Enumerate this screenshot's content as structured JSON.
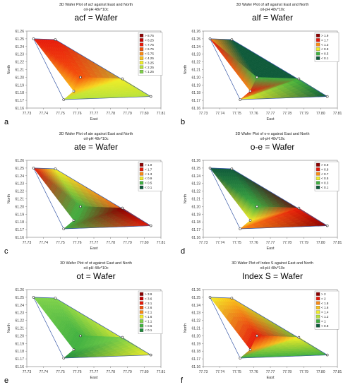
{
  "figure": {
    "panels": [
      {
        "letter": "a",
        "title_top": "3D Wafer Plot of acf against East and North",
        "subtitle": "oil-pH 48v*10c",
        "title_main": "acf = Wafer",
        "legend": [
          "> 8.75",
          "< 8.25",
          "< 7.75",
          "< 6.75",
          "< 5.75",
          "< 4.25",
          "< 3.25",
          "< 2.25",
          "< 1.25"
        ],
        "legend_colors": [
          "#8c0000",
          "#c40000",
          "#e61a0a",
          "#f5500a",
          "#fa8a14",
          "#fcc21a",
          "#f2ee28",
          "#b8e23a",
          "#7fd24a"
        ],
        "regions": [
          {
            "tri": [
              0,
              1,
              2
            ],
            "c": [
              2,
              2,
              3
            ]
          },
          {
            "tri": [
              1,
              6,
              2
            ],
            "c": [
              2,
              7,
              3
            ]
          },
          {
            "tri": [
              0,
              2,
              3
            ],
            "c": [
              2,
              3,
              5
            ]
          },
          {
            "tri": [
              2,
              6,
              4
            ],
            "c": [
              3,
              7,
              6
            ]
          },
          {
            "tri": [
              2,
              4,
              3
            ],
            "c": [
              3,
              6,
              5
            ]
          },
          {
            "tri": [
              3,
              4,
              5
            ],
            "c": [
              5,
              6,
              7
            ]
          },
          {
            "tri": [
              4,
              6,
              5
            ],
            "c": [
              6,
              7,
              7
            ]
          }
        ]
      },
      {
        "letter": "b",
        "title_top": "3D Wafer Plot of alf against East and North",
        "subtitle": "oil-pH 48v*10c",
        "title_main": "alf = Wafer",
        "legend": [
          "> 1.9",
          "< 1.7",
          "< 1.3",
          "< 0.9",
          "< 0.5",
          "< 0.1"
        ],
        "legend_colors": [
          "#8c0000",
          "#e61a0a",
          "#fa8a14",
          "#f2ee28",
          "#40b040",
          "#0f5a3a"
        ],
        "regions": [
          {
            "tri": [
              0,
              1,
              2
            ],
            "c": [
              2,
              5,
              5
            ]
          },
          {
            "tri": [
              1,
              6,
              2
            ],
            "c": [
              5,
              5,
              5
            ]
          },
          {
            "tri": [
              0,
              2,
              3
            ],
            "c": [
              1,
              4,
              2
            ]
          },
          {
            "tri": [
              2,
              6,
              4
            ],
            "c": [
              5,
              5,
              4
            ]
          },
          {
            "tri": [
              2,
              4,
              3
            ],
            "c": [
              4,
              4,
              1
            ]
          },
          {
            "tri": [
              3,
              4,
              5
            ],
            "c": [
              1,
              4,
              2
            ]
          },
          {
            "tri": [
              4,
              6,
              5
            ],
            "c": [
              4,
              5,
              3
            ]
          }
        ]
      },
      {
        "letter": "c",
        "title_top": "3D Wafer Plot of ate against East and North",
        "subtitle": "oil-pH 48v*10c",
        "title_main": "ate = Wafer",
        "legend": [
          "> 1.9",
          "< 1.7",
          "< 1.3",
          "< 0.9",
          "< 0.5",
          "< 0.1"
        ],
        "legend_colors": [
          "#8c0000",
          "#e61a0a",
          "#fa8a14",
          "#f2ee28",
          "#40b040",
          "#0f5a3a"
        ],
        "regions": [
          {
            "tri": [
              0,
              1,
              2
            ],
            "c": [
              1,
              3,
              4
            ]
          },
          {
            "tri": [
              1,
              6,
              2
            ],
            "c": [
              3,
              1,
              4
            ]
          },
          {
            "tri": [
              0,
              2,
              3
            ],
            "c": [
              1,
              4,
              4
            ]
          },
          {
            "tri": [
              2,
              6,
              4
            ],
            "c": [
              4,
              1,
              0
            ]
          },
          {
            "tri": [
              2,
              4,
              3
            ],
            "c": [
              4,
              0,
              4
            ]
          },
          {
            "tri": [
              3,
              4,
              5
            ],
            "c": [
              4,
              0,
              4
            ]
          },
          {
            "tri": [
              4,
              6,
              5
            ],
            "c": [
              0,
              1,
              4
            ]
          }
        ]
      },
      {
        "letter": "d",
        "title_top": "3D Wafer Plot of o-e against East and North",
        "subtitle": "oil-pH 48v*10c",
        "title_main": "o-e = Wafer",
        "legend": [
          "> 0.9",
          "< 0.9",
          "< 0.7",
          "< 0.5",
          "< 0.3",
          "< 0.1"
        ],
        "legend_colors": [
          "#8c0000",
          "#e61a0a",
          "#fa8a14",
          "#f2ee28",
          "#40b040",
          "#0f5a3a"
        ],
        "regions": [
          {
            "tri": [
              0,
              1,
              2
            ],
            "c": [
              5,
              5,
              4
            ]
          },
          {
            "tri": [
              1,
              6,
              2
            ],
            "c": [
              5,
              0,
              4
            ]
          },
          {
            "tri": [
              0,
              2,
              3
            ],
            "c": [
              5,
              4,
              3
            ]
          },
          {
            "tri": [
              2,
              6,
              4
            ],
            "c": [
              4,
              0,
              1
            ]
          },
          {
            "tri": [
              2,
              4,
              3
            ],
            "c": [
              4,
              1,
              3
            ]
          },
          {
            "tri": [
              3,
              4,
              5
            ],
            "c": [
              3,
              1,
              2
            ]
          },
          {
            "tri": [
              4,
              6,
              5
            ],
            "c": [
              1,
              0,
              2
            ]
          }
        ]
      },
      {
        "letter": "e",
        "title_top": "3D Wafer Plot of ot against East and North",
        "subtitle": "oil-pH 48v*10c",
        "title_main": "ot = Wafer",
        "legend": [
          "> 3.9",
          "< 3.6",
          "< 3.1",
          "< 2.6",
          "< 2.1",
          "< 1.6",
          "< 1.1",
          "< 0.6",
          "< 0.1"
        ],
        "legend_colors": [
          "#8c0000",
          "#c40000",
          "#e61a0a",
          "#f5500a",
          "#fa8a14",
          "#f2ee28",
          "#7fd24a",
          "#40b040",
          "#1f8a3a"
        ],
        "regions": [
          {
            "tri": [
              0,
              1,
              2
            ],
            "c": [
              6,
              6,
              7
            ]
          },
          {
            "tri": [
              1,
              6,
              2
            ],
            "c": [
              6,
              5,
              7
            ]
          },
          {
            "tri": [
              0,
              2,
              3
            ],
            "c": [
              6,
              7,
              7
            ]
          },
          {
            "tri": [
              2,
              6,
              4
            ],
            "c": [
              7,
              5,
              6
            ]
          },
          {
            "tri": [
              2,
              4,
              3
            ],
            "c": [
              7,
              6,
              7
            ]
          },
          {
            "tri": [
              3,
              4,
              5
            ],
            "c": [
              7,
              6,
              8
            ]
          },
          {
            "tri": [
              4,
              6,
              5
            ],
            "c": [
              6,
              5,
              8
            ]
          }
        ]
      },
      {
        "letter": "f",
        "title_top": "3D Wafer Plot of Index S against East and North",
        "subtitle": "oil-pH 48v*10c",
        "title_main": "Index S = Wafer",
        "legend": [
          "> 2",
          "< 2",
          "< 1.8",
          "< 1.6",
          "< 1.4",
          "< 1.2",
          "< 1",
          "< 0.8"
        ],
        "legend_colors": [
          "#8c0000",
          "#e61a0a",
          "#fa8a14",
          "#fcc21a",
          "#f2ee28",
          "#b8e23a",
          "#40b040",
          "#0f5a3a"
        ],
        "regions": [
          {
            "tri": [
              0,
              1,
              2
            ],
            "c": [
              4,
              3,
              1
            ]
          },
          {
            "tri": [
              1,
              6,
              2
            ],
            "c": [
              3,
              6,
              1
            ]
          },
          {
            "tri": [
              0,
              2,
              3
            ],
            "c": [
              4,
              1,
              1
            ]
          },
          {
            "tri": [
              2,
              6,
              4
            ],
            "c": [
              1,
              6,
              4
            ]
          },
          {
            "tri": [
              2,
              4,
              3
            ],
            "c": [
              1,
              4,
              2
            ]
          },
          {
            "tri": [
              3,
              4,
              5
            ],
            "c": [
              2,
              4,
              6
            ]
          },
          {
            "tri": [
              4,
              6,
              5
            ],
            "c": [
              4,
              6,
              6
            ]
          }
        ]
      }
    ]
  },
  "chart_data": [
    {
      "type": "heatmap",
      "title": "acf = Wafer",
      "xlabel": "East",
      "ylabel": "North",
      "xlim": [
        77.73,
        77.81
      ],
      "ylim": [
        61.16,
        61.26
      ],
      "xticks": [
        "77.73",
        "77.74",
        "77.75",
        "77.76",
        "77.77",
        "77.78",
        "77.79",
        "77.80",
        "77.81"
      ],
      "yticks": [
        "61.26",
        "61.25",
        "61.24",
        "61.23",
        "61.22",
        "61.21",
        "61.20",
        "61.19",
        "61.18",
        "61.17",
        "61.16"
      ],
      "points": [
        {
          "x": 77.734,
          "y": 61.25
        },
        {
          "x": 77.747,
          "y": 61.249
        },
        {
          "x": 77.762,
          "y": 61.2
        },
        {
          "x": 77.758,
          "y": 61.182
        },
        {
          "x": 77.787,
          "y": 61.198
        },
        {
          "x": 77.752,
          "y": 61.171
        },
        {
          "x": 77.804,
          "y": 61.175
        }
      ]
    },
    {
      "type": "heatmap",
      "title": "alf = Wafer",
      "xlabel": "East",
      "ylabel": "North",
      "xlim": [
        77.73,
        77.81
      ],
      "ylim": [
        61.16,
        61.26
      ],
      "xticks": [
        "77.73",
        "77.74",
        "77.75",
        "77.76",
        "77.77",
        "77.78",
        "77.79",
        "77.80",
        "77.81"
      ],
      "yticks": [
        "61.26",
        "61.25",
        "61.24",
        "61.23",
        "61.22",
        "61.21",
        "61.20",
        "61.19",
        "61.18",
        "61.17",
        "61.16"
      ],
      "points": [
        {
          "x": 77.734,
          "y": 61.25
        },
        {
          "x": 77.747,
          "y": 61.249
        },
        {
          "x": 77.762,
          "y": 61.2
        },
        {
          "x": 77.758,
          "y": 61.182
        },
        {
          "x": 77.787,
          "y": 61.198
        },
        {
          "x": 77.752,
          "y": 61.171
        },
        {
          "x": 77.804,
          "y": 61.175
        }
      ]
    },
    {
      "type": "heatmap",
      "title": "ate = Wafer",
      "xlabel": "East",
      "ylabel": "North",
      "xlim": [
        77.73,
        77.81
      ],
      "ylim": [
        61.16,
        61.26
      ],
      "xticks": [
        "77.73",
        "77.74",
        "77.75",
        "77.76",
        "77.77",
        "77.78",
        "77.79",
        "77.80",
        "77.81"
      ],
      "yticks": [
        "61.26",
        "61.25",
        "61.24",
        "61.23",
        "61.22",
        "61.21",
        "61.20",
        "61.19",
        "61.18",
        "61.17",
        "61.16"
      ],
      "points": [
        {
          "x": 77.734,
          "y": 61.25
        },
        {
          "x": 77.747,
          "y": 61.249
        },
        {
          "x": 77.762,
          "y": 61.2
        },
        {
          "x": 77.758,
          "y": 61.182
        },
        {
          "x": 77.787,
          "y": 61.198
        },
        {
          "x": 77.752,
          "y": 61.171
        },
        {
          "x": 77.804,
          "y": 61.175
        }
      ]
    },
    {
      "type": "heatmap",
      "title": "o-e = Wafer",
      "xlabel": "East",
      "ylabel": "North",
      "xlim": [
        77.73,
        77.81
      ],
      "ylim": [
        61.16,
        61.26
      ],
      "xticks": [
        "77.73",
        "77.74",
        "77.75",
        "77.76",
        "77.77",
        "77.78",
        "77.79",
        "77.80",
        "77.81"
      ],
      "yticks": [
        "61.26",
        "61.25",
        "61.24",
        "61.23",
        "61.22",
        "61.21",
        "61.20",
        "61.19",
        "61.18",
        "61.17",
        "61.16"
      ],
      "points": [
        {
          "x": 77.734,
          "y": 61.25
        },
        {
          "x": 77.747,
          "y": 61.249
        },
        {
          "x": 77.762,
          "y": 61.2
        },
        {
          "x": 77.758,
          "y": 61.182
        },
        {
          "x": 77.787,
          "y": 61.198
        },
        {
          "x": 77.752,
          "y": 61.171
        },
        {
          "x": 77.804,
          "y": 61.175
        }
      ]
    },
    {
      "type": "heatmap",
      "title": "ot = Wafer",
      "xlabel": "East",
      "ylabel": "North",
      "xlim": [
        77.73,
        77.81
      ],
      "ylim": [
        61.16,
        61.26
      ],
      "xticks": [
        "77.73",
        "77.74",
        "77.75",
        "77.76",
        "77.77",
        "77.78",
        "77.79",
        "77.80",
        "77.81"
      ],
      "yticks": [
        "61.26",
        "61.25",
        "61.24",
        "61.23",
        "61.22",
        "61.21",
        "61.20",
        "61.19",
        "61.18",
        "61.17",
        "61.16"
      ],
      "points": [
        {
          "x": 77.734,
          "y": 61.25
        },
        {
          "x": 77.747,
          "y": 61.249
        },
        {
          "x": 77.762,
          "y": 61.2
        },
        {
          "x": 77.758,
          "y": 61.182
        },
        {
          "x": 77.787,
          "y": 61.198
        },
        {
          "x": 77.752,
          "y": 61.171
        },
        {
          "x": 77.804,
          "y": 61.175
        }
      ]
    },
    {
      "type": "heatmap",
      "title": "Index S = Wafer",
      "xlabel": "East",
      "ylabel": "North",
      "xlim": [
        77.73,
        77.81
      ],
      "ylim": [
        61.16,
        61.26
      ],
      "xticks": [
        "77.73",
        "77.74",
        "77.75",
        "77.76",
        "77.77",
        "77.78",
        "77.79",
        "77.80",
        "77.81"
      ],
      "yticks": [
        "61.26",
        "61.25",
        "61.24",
        "61.23",
        "61.22",
        "61.21",
        "61.20",
        "61.19",
        "61.18",
        "61.17",
        "61.16"
      ],
      "points": [
        {
          "x": 77.734,
          "y": 61.25
        },
        {
          "x": 77.747,
          "y": 61.249
        },
        {
          "x": 77.762,
          "y": 61.2
        },
        {
          "x": 77.758,
          "y": 61.182
        },
        {
          "x": 77.787,
          "y": 61.198
        },
        {
          "x": 77.752,
          "y": 61.171
        },
        {
          "x": 77.804,
          "y": 61.175
        }
      ]
    }
  ]
}
